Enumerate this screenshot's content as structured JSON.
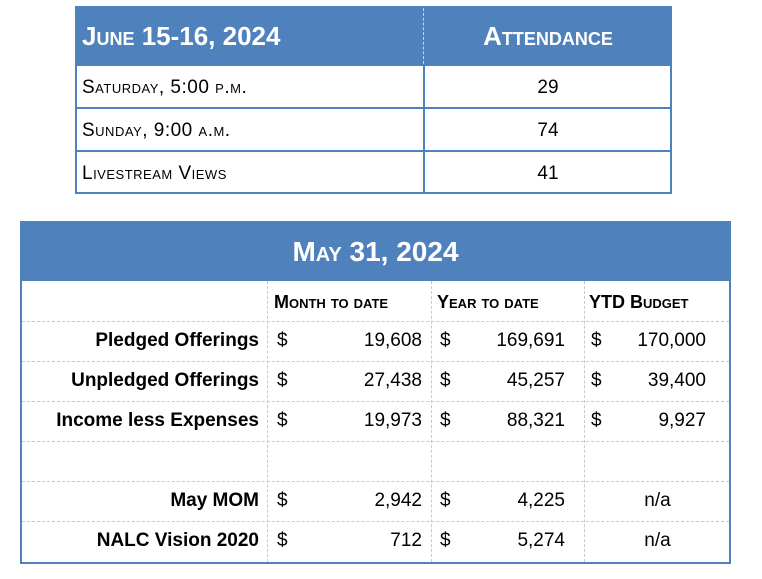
{
  "attendance": {
    "header": {
      "date": "June 15-16, 2024",
      "label": "Attendance"
    },
    "rows": [
      {
        "service": "Saturday, 5:00 p.m.",
        "count": "29"
      },
      {
        "service": "Sunday, 9:00 a.m.",
        "count": "74"
      },
      {
        "service": "Livestream Views",
        "count": "41"
      }
    ]
  },
  "finance": {
    "title": "May 31, 2024",
    "columns": [
      "Month to date",
      "Year to date",
      "YTD Budget"
    ],
    "currency_symbol": "$",
    "rows": [
      {
        "label": "Pledged Offerings",
        "month": "19,608",
        "year": "169,691",
        "budget": "170,000"
      },
      {
        "label": "Unpledged Offerings",
        "month": "27,438",
        "year": "45,257",
        "budget": "39,400"
      },
      {
        "label": "Income less Expenses",
        "month": "19,973",
        "year": "88,321",
        "budget": "9,927"
      },
      {
        "label": "May MOM",
        "month": "2,942",
        "year": "4,225",
        "budget": "n/a"
      },
      {
        "label": "NALC Vision 2020",
        "month": "712",
        "year": "5,274",
        "budget": "n/a"
      }
    ]
  }
}
